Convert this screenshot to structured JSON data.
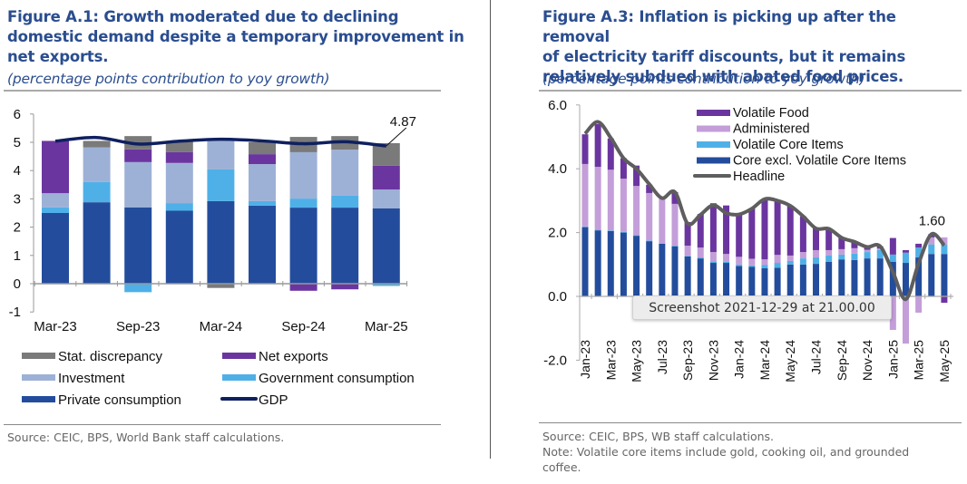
{
  "left": {
    "title": "Figure A.1: Growth moderated due to declining domestic demand despite a temporary improvement in net exports.",
    "title_lines": [
      "Figure A.1: Growth moderated due to declining",
      "domestic demand despite a temporary improvement in",
      "net exports."
    ],
    "subtitle": "(percentage points contribution to yoy growth)",
    "source": "Source: CEIC, BPS, World Bank staff calculations."
  },
  "right": {
    "title_lines": [
      "Figure A.3: Inflation is picking up after the removal",
      "of electricity tariff discounts, but it remains",
      "relatively subdued with abated food prices."
    ],
    "subtitle": "(percentage points contribution to yoy growth)",
    "source": "Source: CEIC, BPS, WB staff calculations.",
    "note_lines": [
      "Note: Volatile core items include gold, cooking oil, and grounded",
      "coffee."
    ]
  },
  "tooltip": "Screenshot 2021-12-29 at 21.00.00",
  "chart_data": [
    {
      "type": "bar",
      "stacked": true,
      "title": "Figure A.1: Growth moderated due to declining domestic demand despite a temporary improvement in net exports.",
      "ylabel": "percentage points contribution to yoy growth",
      "ylim": [
        -1,
        6
      ],
      "yticks": [
        "-1",
        "0",
        "1",
        "2",
        "3",
        "4",
        "5",
        "6"
      ],
      "categories": [
        "Mar-23",
        "Jun-23",
        "Sep-23",
        "Dec-23",
        "Mar-24",
        "Jun-24",
        "Sep-24",
        "Dec-24",
        "Mar-25"
      ],
      "xtick_labels": [
        "Mar-23",
        "",
        "Sep-23",
        "",
        "Mar-24",
        "",
        "Sep-24",
        "",
        "Mar-25"
      ],
      "series": [
        {
          "name": "Private consumption",
          "color": "#234d9c",
          "values": [
            2.5,
            2.88,
            2.7,
            2.58,
            2.92,
            2.76,
            2.69,
            2.69,
            2.66
          ]
        },
        {
          "name": "Government consumption",
          "color": "#4fb0e8",
          "values": [
            0.2,
            0.72,
            -0.3,
            0.27,
            1.12,
            0.16,
            0.32,
            0.42,
            -0.08
          ]
        },
        {
          "name": "Investment",
          "color": "#9db1d6",
          "values": [
            0.5,
            1.22,
            1.6,
            1.42,
            1.02,
            1.31,
            1.64,
            1.63,
            0.67
          ]
        },
        {
          "name": "Net exports",
          "color": "#6b35a0",
          "values": [
            1.85,
            0.0,
            0.45,
            0.38,
            0.06,
            0.35,
            -0.25,
            -0.2,
            0.84
          ]
        },
        {
          "name": "Stat. discrepancy",
          "color": "#7a7a7a",
          "values": [
            0.0,
            0.23,
            0.47,
            0.4,
            -0.15,
            0.42,
            0.54,
            0.48,
            0.8
          ]
        }
      ],
      "line": {
        "name": "GDP",
        "color": "#0f2060",
        "values": [
          5.04,
          5.17,
          4.94,
          5.04,
          5.11,
          5.05,
          4.95,
          5.02,
          4.87
        ]
      },
      "annotation": "4.87",
      "legend": [
        {
          "name": "Stat. discrepancy",
          "kind": "bar",
          "color": "#7a7a7a"
        },
        {
          "name": "Net exports",
          "kind": "bar",
          "color": "#6b35a0"
        },
        {
          "name": "Investment",
          "kind": "bar",
          "color": "#9db1d6"
        },
        {
          "name": "Government consumption",
          "kind": "bar",
          "color": "#4fb0e8"
        },
        {
          "name": "Private consumption",
          "kind": "bar",
          "color": "#234d9c"
        },
        {
          "name": "GDP",
          "kind": "line",
          "color": "#0f2060"
        }
      ],
      "legend_position": "bottom"
    },
    {
      "type": "bar",
      "stacked": true,
      "title": "Figure A.3: Inflation is picking up after the removal of electricity tariff discounts, but it remains relatively subdued with abated food prices.",
      "ylabel": "percentage points contribution to yoy growth",
      "ylim": [
        -2,
        6
      ],
      "yticks": [
        "-2.0",
        "0.0",
        "2.0",
        "4.0",
        "6.0"
      ],
      "categories": [
        "Jan-23",
        "Feb-23",
        "Mar-23",
        "Apr-23",
        "May-23",
        "Jun-23",
        "Jul-23",
        "Aug-23",
        "Sep-23",
        "Oct-23",
        "Nov-23",
        "Dec-23",
        "Jan-24",
        "Feb-24",
        "Mar-24",
        "Apr-24",
        "May-24",
        "Jun-24",
        "Jul-24",
        "Aug-24",
        "Sep-24",
        "Oct-24",
        "Nov-24",
        "Dec-24",
        "Jan-25",
        "Feb-25",
        "Mar-25",
        "Apr-25",
        "May-25"
      ],
      "xtick_labels": [
        "Jan-23",
        "Mar-23",
        "May-23",
        "Jul-23",
        "Sep-23",
        "Nov-23",
        "Jan-24",
        "Mar-24",
        "May-24",
        "Jul-24",
        "Sep-24",
        "Nov-24",
        "Jan-25",
        "Mar-25",
        "May-25"
      ],
      "series": [
        {
          "name": "Core excl. Volatile Core Items",
          "color": "#234d9c",
          "values": [
            2.17,
            2.07,
            2.05,
            2.0,
            1.9,
            1.73,
            1.65,
            1.57,
            1.25,
            1.19,
            1.05,
            1.05,
            0.95,
            0.93,
            0.88,
            0.9,
            1.0,
            1.0,
            1.02,
            1.08,
            1.16,
            1.14,
            1.19,
            1.19,
            1.08,
            1.05,
            1.22,
            1.33,
            1.33
          ]
        },
        {
          "name": "Volatile Core Items",
          "color": "#4fb0e8",
          "values": [
            0.02,
            0.02,
            0.02,
            0.02,
            0.02,
            0.02,
            0.02,
            0.02,
            0.02,
            0.03,
            0.05,
            0.04,
            0.05,
            0.04,
            0.1,
            0.15,
            0.11,
            0.19,
            0.2,
            0.2,
            0.15,
            0.2,
            0.2,
            0.26,
            0.23,
            0.32,
            0.31,
            0.3,
            0.29
          ]
        },
        {
          "name": "Administered",
          "color": "#c39ed9",
          "values": [
            1.96,
            1.97,
            1.9,
            1.67,
            1.54,
            1.49,
            1.39,
            1.31,
            0.32,
            0.31,
            0.29,
            0.24,
            0.24,
            0.21,
            0.18,
            0.25,
            0.17,
            0.2,
            0.23,
            0.17,
            0.17,
            0.17,
            0.07,
            0.05,
            -1.05,
            -1.48,
            -0.51,
            0.22,
            0.23
          ]
        },
        {
          "name": "Volatile Food",
          "color": "#6b35a0",
          "values": [
            0.93,
            1.34,
            0.98,
            0.64,
            0.64,
            0.26,
            0.02,
            0.37,
            0.74,
            1.05,
            1.53,
            1.52,
            1.33,
            1.57,
            1.89,
            1.7,
            1.56,
            1.12,
            0.68,
            0.67,
            0.36,
            0.2,
            0.09,
            0.07,
            0.52,
            0.08,
            0.12,
            0.1,
            -0.2
          ]
        }
      ],
      "line": {
        "name": "Headline",
        "color": "#5e5e5e",
        "values": [
          5.1,
          5.47,
          4.97,
          4.33,
          4.0,
          3.52,
          3.08,
          3.27,
          2.28,
          2.56,
          2.86,
          2.61,
          2.57,
          2.75,
          3.05,
          3.0,
          2.84,
          2.51,
          2.13,
          2.12,
          1.84,
          1.71,
          1.55,
          1.57,
          0.76,
          -0.09,
          1.03,
          1.95,
          1.6
        ]
      },
      "annotation": "1.60",
      "legend": [
        {
          "name": "Volatile Food",
          "kind": "bar",
          "color": "#6b35a0"
        },
        {
          "name": "Administered",
          "kind": "bar",
          "color": "#c39ed9"
        },
        {
          "name": "Volatile Core Items",
          "kind": "bar",
          "color": "#4fb0e8"
        },
        {
          "name": "Core excl. Volatile Core Items",
          "kind": "bar",
          "color": "#234d9c"
        },
        {
          "name": "Headline",
          "kind": "line",
          "color": "#5e5e5e"
        }
      ],
      "legend_position": "top-right"
    }
  ]
}
